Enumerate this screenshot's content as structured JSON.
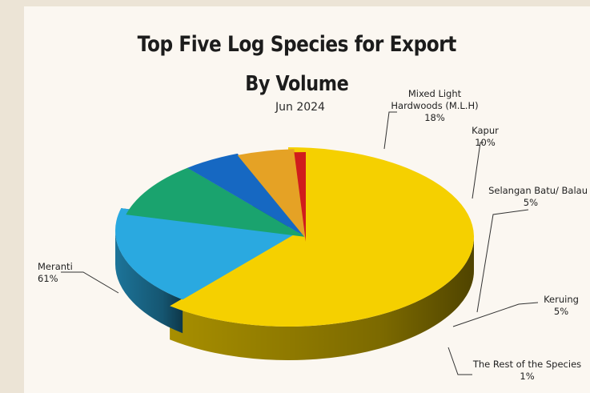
{
  "chart_data": {
    "type": "pie",
    "title": "Top Five Log Species for Export",
    "title_line2": "By Volume",
    "subtitle": "Jun 2024",
    "slices": [
      {
        "name": "Meranti",
        "value": 61,
        "label": "61%",
        "color": "#f5d000"
      },
      {
        "name": "Mixed Light Hardwoods (M.L.H)",
        "name_line1": "Mixed Light",
        "name_line2": "Hardwoods (M.L.H)",
        "value": 18,
        "label": "18%",
        "color": "#2aa9e0"
      },
      {
        "name": "Kapur",
        "value": 10,
        "label": "10%",
        "color": "#1aa36e"
      },
      {
        "name": "Selangan Batu/ Balau",
        "value": 5,
        "label": "5%",
        "color": "#1668c2"
      },
      {
        "name": "Keruing",
        "value": 5,
        "label": "5%",
        "color": "#e5a225"
      },
      {
        "name": "The Rest of the Species",
        "value": 1,
        "label": "1%",
        "color": "#d01c1c"
      }
    ],
    "start_angle_deg": -90,
    "legend": "none (callout labels)"
  }
}
